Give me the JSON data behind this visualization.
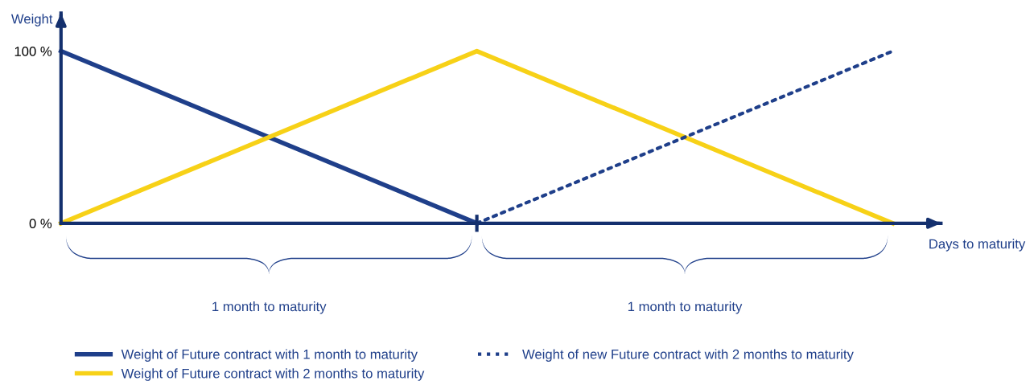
{
  "chart_data": {
    "type": "line",
    "xlabel": "Days to maturity",
    "ylabel": "Weight",
    "categories": [
      null,
      null,
      null
    ],
    "series": [
      {
        "name": "Weight of Future contract with 1 month to maturity",
        "color": "#1f3f8a",
        "values": [
          100,
          0,
          null
        ],
        "line_style": "solid"
      },
      {
        "name": "Weight of Future contract with 2 months to maturity",
        "color": "#f7d117",
        "values": [
          0,
          100,
          0
        ],
        "line_style": "solid"
      },
      {
        "name": "Weight of new Future contract with 2 months to maturity",
        "color": "#1f3f8a",
        "values": [
          null,
          0,
          100
        ],
        "line_style": "dotted"
      }
    ],
    "ylim": [
      0,
      122
    ],
    "yticks": [
      {
        "value": 0,
        "label": "0 %"
      },
      {
        "value": 100,
        "label": "100 %"
      }
    ],
    "tick_labels": "y",
    "grid": false,
    "legend": "bottom",
    "marker": "none",
    "annotations": [
      "1 month to maturity",
      "1 month to maturity"
    ]
  }
}
